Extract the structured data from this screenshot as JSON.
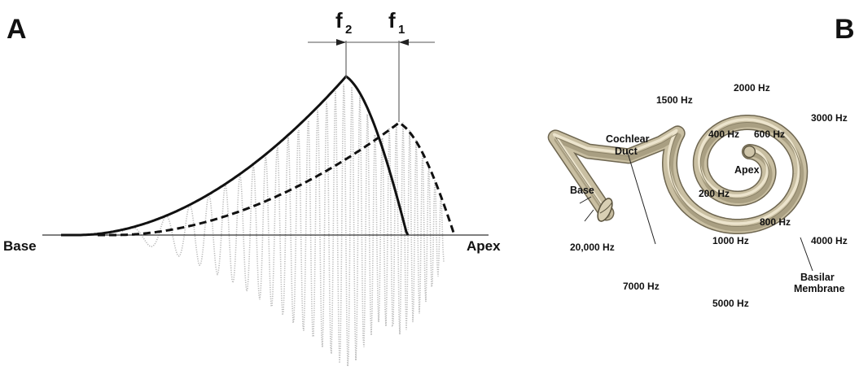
{
  "panel_a": {
    "letter": "A",
    "left_label": "Base",
    "right_label": "Apex",
    "marker_f2": {
      "main": "f",
      "sub": "2"
    },
    "marker_f1": {
      "main": "f",
      "sub": "1"
    }
  },
  "panel_b": {
    "letter": "B",
    "frequencies": {
      "hz_20000": "20,000 Hz",
      "hz_7000": "7000 Hz",
      "hz_5000": "5000 Hz",
      "hz_4000": "4000 Hz",
      "hz_3000": "3000 Hz",
      "hz_2000": "2000 Hz",
      "hz_1500": "1500 Hz",
      "hz_1000": "1000 Hz",
      "hz_800": "800 Hz",
      "hz_600": "600 Hz",
      "hz_400": "400 Hz",
      "hz_200": "200 Hz"
    },
    "labels": {
      "base": "Base",
      "apex": "Apex",
      "cochlear_line1": "Cochlear",
      "cochlear_line2": "Duct",
      "basilar_line1": "Basilar",
      "basilar_line2": "Membrane"
    }
  }
}
